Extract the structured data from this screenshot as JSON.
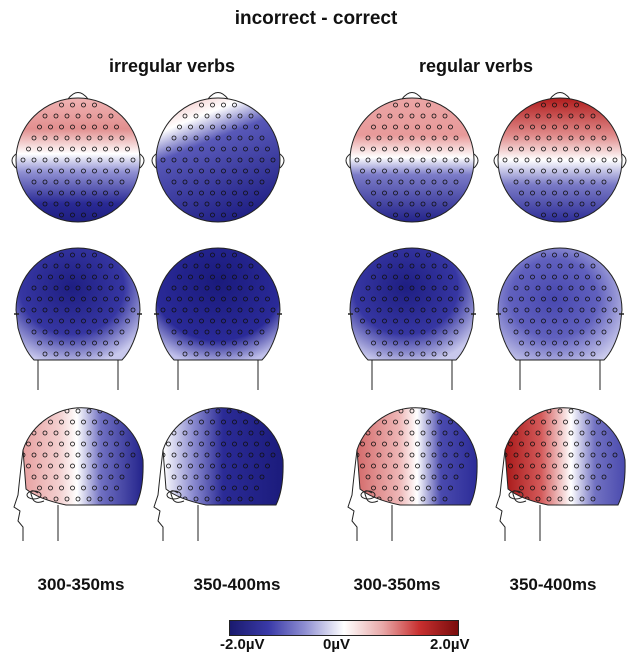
{
  "title": "incorrect - correct",
  "groups": [
    "irregular verbs",
    "regular verbs"
  ],
  "time_windows": [
    "300-350ms",
    "350-400ms",
    "300-350ms",
    "350-400ms"
  ],
  "colorbar": {
    "min_label": "-2.0µV",
    "mid_label": "0µV",
    "max_label": "2.0µV",
    "colors": [
      "#1a1a6e",
      "#3a3aa8",
      "#8f8fd2",
      "#ffffff",
      "#e8a8a8",
      "#c83030",
      "#7a0c0c"
    ]
  },
  "views": [
    "top",
    "back",
    "left-side"
  ],
  "maps": [
    {
      "group": "irregular verbs",
      "window": "300-350ms",
      "top": "positive frontal, negative posterior",
      "back": "negative",
      "side": "positive frontal, negative posterior"
    },
    {
      "group": "irregular verbs",
      "window": "350-400ms",
      "top": "negative",
      "back": "negative",
      "side": "negative"
    },
    {
      "group": "regular verbs",
      "window": "300-350ms",
      "top": "positive frontal, negative posterior",
      "back": "negative",
      "side": "positive frontal, negative posterior"
    },
    {
      "group": "regular verbs",
      "window": "350-400ms",
      "top": "strong positive frontal, negative posterior",
      "back": "negative",
      "side": "strong positive frontal, negative posterior"
    }
  ]
}
